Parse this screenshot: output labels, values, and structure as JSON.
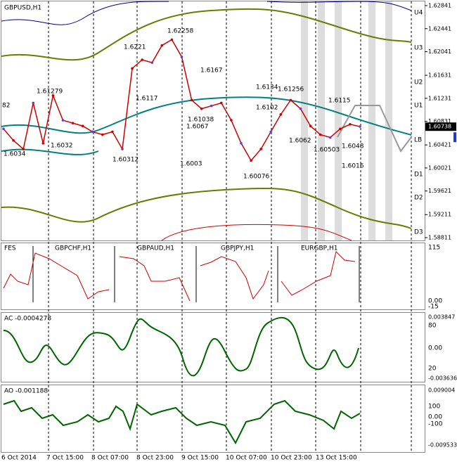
{
  "main_pane": {
    "title": "GBPUSD,H1",
    "price_axis": {
      "ylim": [
        1.58811,
        1.62841
      ],
      "ticks": [
        1.62841,
        1.62441,
        1.62041,
        1.61631,
        1.61231,
        1.60831,
        1.60421,
        1.60021,
        1.59621,
        1.59211,
        1.58811
      ],
      "current": 1.60738
    },
    "levels": [
      "U4",
      "U3",
      "U2",
      "U1",
      "LB",
      "D1",
      "D2",
      "D3"
    ],
    "annotations": [
      "82",
      "1.61279",
      "1.6221",
      "1.62258",
      "1.6117",
      "1.6167",
      "1.6134",
      "1.61256",
      "1.6115",
      "1.6102",
      "1.61038",
      "1.6067",
      "1.6062",
      "1.60503",
      "1.6048",
      "1.6034",
      "1.6032",
      "1.60312",
      "1.6003",
      "1.60076",
      "1.6016"
    ],
    "price_path": [
      1.607,
      1.605,
      1.6035,
      1.6115,
      1.6045,
      1.6128,
      1.6085,
      1.608,
      1.6075,
      1.6065,
      1.606,
      1.6065,
      1.6035,
      1.6175,
      1.619,
      1.6185,
      1.6215,
      1.6225,
      1.6195,
      1.612,
      1.6105,
      1.611,
      1.6115,
      1.6085,
      1.6045,
      1.6015,
      1.6035,
      1.6065,
      1.6095,
      1.612,
      1.6105,
      1.6075,
      1.606,
      1.6055,
      1.607,
      1.6078,
      1.6074
    ]
  },
  "symbols_pane": {
    "labels": [
      "FES",
      "GBPCHF,H1",
      "GBPAUD,H1",
      "GBPJPY,H1",
      "EURGBP,H1"
    ],
    "scale": [
      "115",
      "0.00",
      "-15"
    ]
  },
  "ac_pane": {
    "title": "AC -0.0004278",
    "scale": [
      "0.003847",
      "80",
      "0.00",
      "20",
      "-0.003636"
    ]
  },
  "ao_pane": {
    "title": "AO -0.001188",
    "scale": [
      "0.009004",
      "100",
      "0.00",
      "-100",
      "-0.009533"
    ]
  },
  "time_axis": [
    "6 Oct 2014",
    "7 Oct 15:00",
    "8 Oct 07:00",
    "8 Oct 23:00",
    "9 Oct 15:00",
    "10 Oct 07:00",
    "10 Oct 23:00",
    "13 Oct 15:00"
  ]
}
